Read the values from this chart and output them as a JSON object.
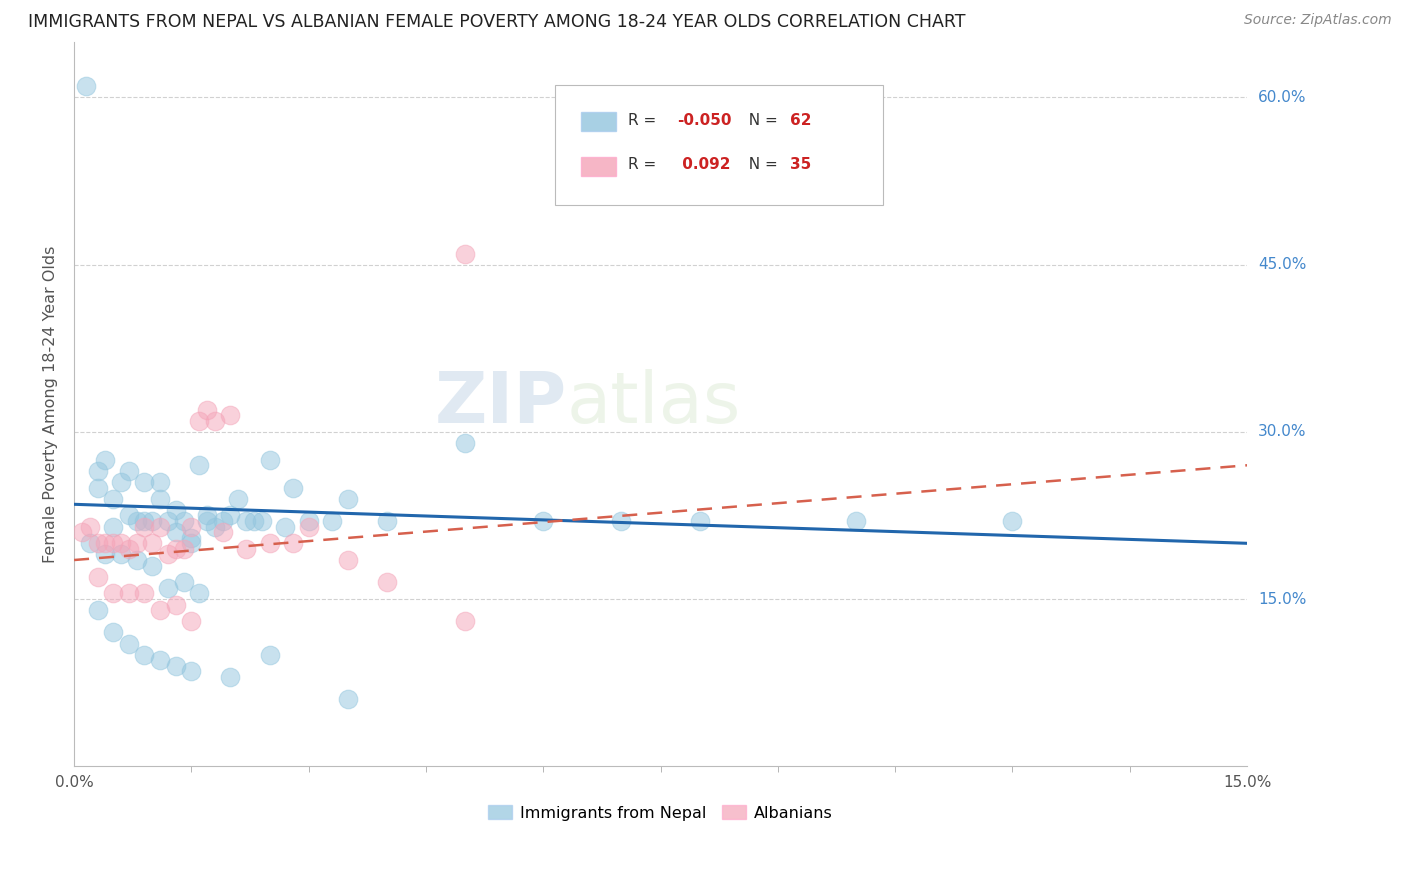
{
  "title": "IMMIGRANTS FROM NEPAL VS ALBANIAN FEMALE POVERTY AMONG 18-24 YEAR OLDS CORRELATION CHART",
  "source": "Source: ZipAtlas.com",
  "ylabel": "Female Poverty Among 18-24 Year Olds",
  "nepal_color": "#92c5de",
  "albanian_color": "#f4a4b8",
  "nepal_line_color": "#2166ac",
  "albanian_line_color": "#d6604d",
  "watermark_zip": "ZIP",
  "watermark_atlas": "atlas",
  "R_nepal": "-0.050",
  "N_nepal": "62",
  "R_albanian": "0.092",
  "N_albanian": "35",
  "x_min": 0.0,
  "x_max": 0.15,
  "y_min": 0.0,
  "y_max": 0.65,
  "nepal_line_x": [
    0.0,
    0.15
  ],
  "nepal_line_y": [
    0.235,
    0.2
  ],
  "albanian_line_x": [
    0.0,
    0.15
  ],
  "albanian_line_y": [
    0.185,
    0.27
  ],
  "nepal_x": [
    0.0015,
    0.003,
    0.004,
    0.005,
    0.006,
    0.007,
    0.008,
    0.009,
    0.01,
    0.011,
    0.012,
    0.013,
    0.014,
    0.015,
    0.016,
    0.017,
    0.018,
    0.019,
    0.02,
    0.021,
    0.022,
    0.023,
    0.024,
    0.025,
    0.027,
    0.028,
    0.03,
    0.033,
    0.035,
    0.04,
    0.05,
    0.06,
    0.07,
    0.08,
    0.1,
    0.12,
    0.003,
    0.005,
    0.007,
    0.009,
    0.011,
    0.013,
    0.015,
    0.017,
    0.002,
    0.004,
    0.006,
    0.008,
    0.01,
    0.012,
    0.014,
    0.016,
    0.003,
    0.005,
    0.007,
    0.009,
    0.011,
    0.013,
    0.015,
    0.02,
    0.025,
    0.035
  ],
  "nepal_y": [
    0.61,
    0.265,
    0.275,
    0.215,
    0.255,
    0.225,
    0.22,
    0.22,
    0.22,
    0.255,
    0.22,
    0.21,
    0.22,
    0.205,
    0.27,
    0.225,
    0.215,
    0.22,
    0.225,
    0.24,
    0.22,
    0.22,
    0.22,
    0.275,
    0.215,
    0.25,
    0.22,
    0.22,
    0.24,
    0.22,
    0.29,
    0.22,
    0.22,
    0.22,
    0.22,
    0.22,
    0.25,
    0.24,
    0.265,
    0.255,
    0.24,
    0.23,
    0.2,
    0.22,
    0.2,
    0.19,
    0.19,
    0.185,
    0.18,
    0.16,
    0.165,
    0.155,
    0.14,
    0.12,
    0.11,
    0.1,
    0.095,
    0.09,
    0.085,
    0.08,
    0.1,
    0.06
  ],
  "albanian_x": [
    0.001,
    0.002,
    0.003,
    0.004,
    0.005,
    0.006,
    0.007,
    0.008,
    0.009,
    0.01,
    0.011,
    0.012,
    0.013,
    0.014,
    0.015,
    0.016,
    0.017,
    0.018,
    0.019,
    0.02,
    0.022,
    0.025,
    0.028,
    0.03,
    0.035,
    0.04,
    0.05,
    0.003,
    0.005,
    0.007,
    0.009,
    0.011,
    0.013,
    0.015,
    0.05
  ],
  "albanian_y": [
    0.21,
    0.215,
    0.2,
    0.2,
    0.2,
    0.2,
    0.195,
    0.2,
    0.215,
    0.2,
    0.215,
    0.19,
    0.195,
    0.195,
    0.215,
    0.31,
    0.32,
    0.31,
    0.21,
    0.315,
    0.195,
    0.2,
    0.2,
    0.215,
    0.185,
    0.165,
    0.46,
    0.17,
    0.155,
    0.155,
    0.155,
    0.14,
    0.145,
    0.13,
    0.13
  ]
}
